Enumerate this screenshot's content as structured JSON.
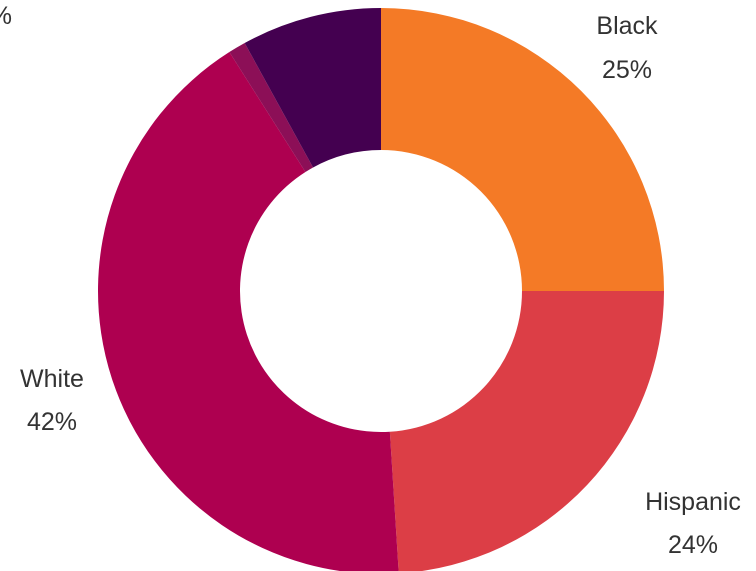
{
  "chart_data": {
    "type": "pie",
    "donut": true,
    "title": "",
    "legend": "none",
    "slices": [
      {
        "label": "Black",
        "value_label": "25%",
        "value": 25,
        "color": "#F47A26"
      },
      {
        "label": "Hispanic",
        "value_label": "24%",
        "value": 24,
        "color": "#DC3E46"
      },
      {
        "label": "White",
        "value_label": "42%",
        "value": 42,
        "color": "#AE0050"
      },
      {
        "label": "",
        "value_label": "",
        "value": 1,
        "color": "#8C0F57"
      },
      {
        "label": "",
        "value_label": "%",
        "value": 8,
        "color": "#440050"
      }
    ]
  }
}
